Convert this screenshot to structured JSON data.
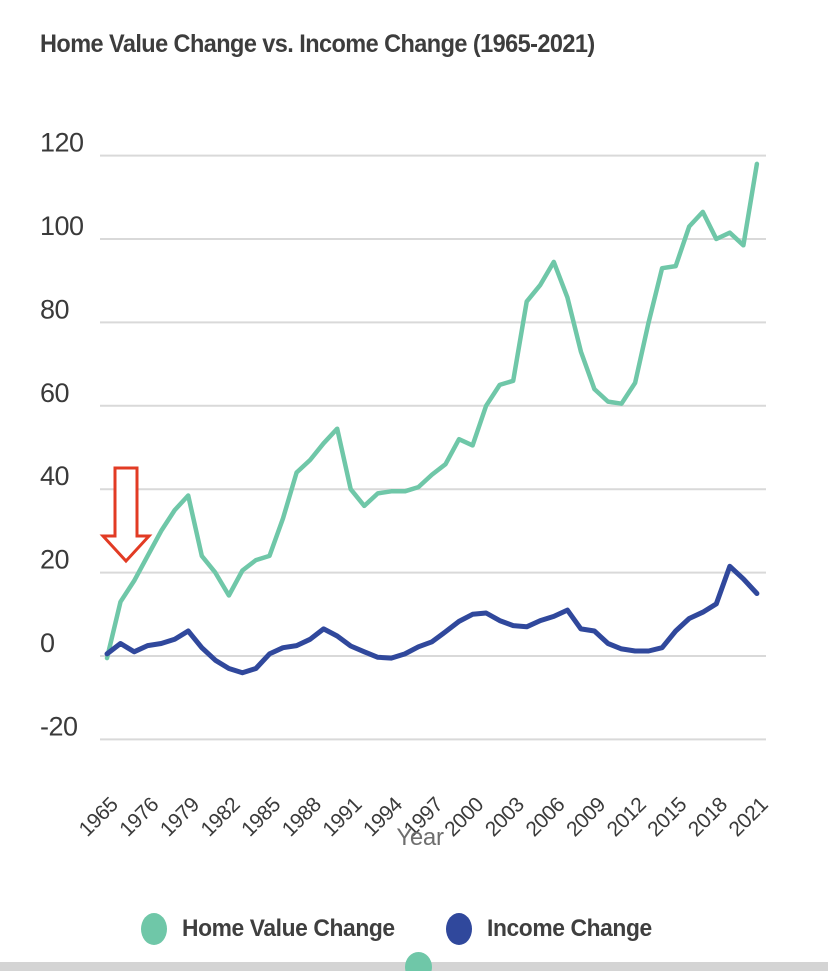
{
  "title": "Home Value Change vs. Income Change (1965-2021)",
  "chart_data": {
    "type": "line",
    "title": "Home Value Change vs. Income Change (1965-2021)",
    "xlabel": "Year",
    "ylabel": "",
    "ylim": [
      -20,
      120
    ],
    "ytick_step": 20,
    "yticks": [
      -20,
      0,
      20,
      40,
      60,
      80,
      100,
      120
    ],
    "grid": "horizontal-only",
    "legend_position": "bottom",
    "xtick_labels": [
      "1965",
      "1976",
      "1979",
      "1982",
      "1985",
      "1988",
      "1991",
      "1994",
      "1997",
      "2000",
      "2003",
      "2006",
      "2009",
      "2012",
      "2015",
      "2018",
      "2021"
    ],
    "x_note": "categorical axis: 1965 followed by yearly values 1974-2021; tick label shown every 3rd point",
    "x": [
      1965,
      1974,
      1975,
      1976,
      1977,
      1978,
      1979,
      1980,
      1981,
      1982,
      1983,
      1984,
      1985,
      1986,
      1987,
      1988,
      1989,
      1990,
      1991,
      1992,
      1993,
      1994,
      1995,
      1996,
      1997,
      1998,
      1999,
      2000,
      2001,
      2002,
      2003,
      2004,
      2005,
      2006,
      2007,
      2008,
      2009,
      2010,
      2011,
      2012,
      2013,
      2014,
      2015,
      2016,
      2017,
      2018,
      2019,
      2020,
      2021
    ],
    "series": [
      {
        "name": "Home Value Change",
        "color": "#6fc7a8",
        "values": [
          -0.5,
          13,
          18,
          24,
          30,
          35,
          38.5,
          24,
          20,
          14.5,
          20.5,
          23,
          24,
          33,
          44,
          47,
          51,
          54.5,
          40,
          36,
          39,
          39.5,
          39.5,
          40.5,
          43.5,
          46,
          52,
          50.5,
          60,
          65,
          66,
          85,
          89,
          94.5,
          86,
          73,
          64,
          61,
          60.5,
          65.5,
          80,
          93,
          93.5,
          103,
          106.5,
          100,
          101.5,
          98.5,
          118
        ]
      },
      {
        "name": "Income Change",
        "color": "#30489c",
        "values": [
          0.5,
          3,
          1,
          2.5,
          3,
          4,
          6,
          2,
          -1,
          -3,
          -4,
          -3,
          0.5,
          2,
          2.5,
          4,
          6.5,
          4.8,
          2.4,
          1,
          -0.3,
          -0.5,
          0.5,
          2.2,
          3.4,
          5.8,
          8.3,
          10,
          10.3,
          8.5,
          7.3,
          7,
          8.5,
          9.5,
          11,
          6.5,
          6,
          3,
          1.7,
          1.2,
          1.2,
          2,
          6,
          9,
          10.5,
          12.5,
          21.5,
          18.5,
          15
        ]
      }
    ],
    "annotation": {
      "type": "down-arrow",
      "color": "#e23b24",
      "fill": "#ffffff",
      "target": "gap between 1965 and 1974 at start of Home Value Change line"
    }
  },
  "legend": {
    "items": [
      {
        "label": "Home Value Change",
        "color": "#6fc7a8"
      },
      {
        "label": "Income Change",
        "color": "#30489c"
      }
    ]
  },
  "colors": {
    "background": "#ffffff",
    "gridline": "#d9d9d9",
    "title_text": "#3d3d3d",
    "tick_text": "#3a3a3a",
    "axis_title_text": "#6e6e6e",
    "bottom_strip": "#d4d4d4"
  }
}
